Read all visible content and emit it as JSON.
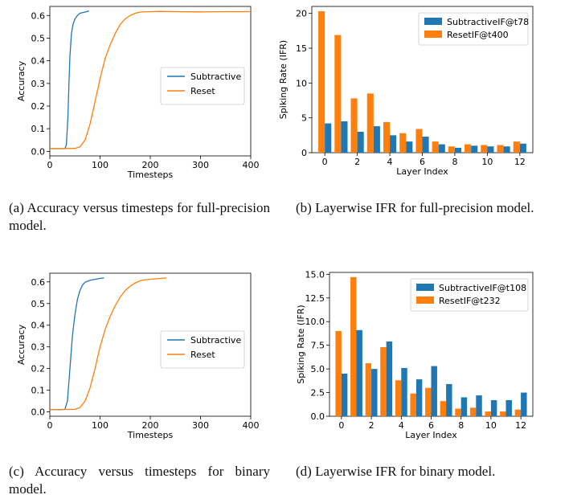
{
  "chart_data": [
    {
      "panel": "a",
      "type": "line",
      "xlabel": "Timesteps",
      "ylabel": "Accuracy",
      "xlim": [
        0,
        400
      ],
      "ylim": [
        -0.02,
        0.64
      ],
      "xticks": [
        0,
        100,
        200,
        300,
        400
      ],
      "yticks": [
        0.0,
        0.1,
        0.2,
        0.3,
        0.4,
        0.5,
        0.6
      ],
      "ytick_labels": [
        "0.0",
        "0.1",
        "0.2",
        "0.3",
        "0.4",
        "0.5",
        "0.6"
      ],
      "legend_position": "center-right",
      "series": [
        {
          "name": "Subtractive",
          "color": "#1f77b4",
          "x": [
            0,
            20,
            30,
            33,
            36,
            38,
            40,
            43,
            46,
            50,
            55,
            60,
            70,
            78
          ],
          "y": [
            0.012,
            0.012,
            0.012,
            0.03,
            0.15,
            0.3,
            0.42,
            0.52,
            0.56,
            0.585,
            0.6,
            0.61,
            0.615,
            0.62
          ]
        },
        {
          "name": "Reset",
          "color": "#ff7f0e",
          "x": [
            0,
            50,
            60,
            70,
            80,
            90,
            100,
            110,
            120,
            130,
            140,
            150,
            160,
            170,
            180,
            200,
            220,
            250,
            300,
            350,
            400
          ],
          "y": [
            0.012,
            0.013,
            0.02,
            0.05,
            0.12,
            0.22,
            0.32,
            0.41,
            0.47,
            0.52,
            0.56,
            0.585,
            0.6,
            0.61,
            0.615,
            0.617,
            0.618,
            0.617,
            0.616,
            0.617,
            0.617
          ]
        }
      ]
    },
    {
      "panel": "b",
      "type": "bar",
      "xlabel": "Layer Index",
      "ylabel": "Spiking Rate (IFR)",
      "xlim": [
        -0.8,
        12.8
      ],
      "ylim": [
        0,
        21
      ],
      "xticks": [
        0,
        2,
        4,
        6,
        8,
        10,
        12
      ],
      "yticks": [
        0,
        5,
        10,
        15,
        20
      ],
      "ytick_labels": [
        "0",
        "5",
        "10",
        "15",
        "20"
      ],
      "legend_position": "top-right",
      "categories": [
        0,
        1,
        2,
        3,
        4,
        5,
        6,
        7,
        8,
        9,
        10,
        11,
        12
      ],
      "series": [
        {
          "name": "SubtractiveIF@t78",
          "color": "#1f77b4",
          "values": [
            4.2,
            4.5,
            3.0,
            3.8,
            2.5,
            1.6,
            2.3,
            1.2,
            0.7,
            1.0,
            0.9,
            0.9,
            1.3
          ]
        },
        {
          "name": "ResetIF@t400",
          "color": "#ff7f0e",
          "values": [
            20.3,
            16.9,
            7.8,
            8.5,
            4.4,
            2.8,
            3.4,
            1.6,
            0.9,
            1.2,
            1.1,
            1.1,
            1.6
          ]
        }
      ]
    },
    {
      "panel": "c",
      "type": "line",
      "xlabel": "Timesteps",
      "ylabel": "Accuracy",
      "xlim": [
        0,
        400
      ],
      "ylim": [
        -0.02,
        0.64
      ],
      "xticks": [
        0,
        100,
        200,
        300,
        400
      ],
      "yticks": [
        0.0,
        0.1,
        0.2,
        0.3,
        0.4,
        0.5,
        0.6
      ],
      "ytick_labels": [
        "0.0",
        "0.1",
        "0.2",
        "0.3",
        "0.4",
        "0.5",
        "0.6"
      ],
      "legend_position": "center-right",
      "series": [
        {
          "name": "Subtractive",
          "color": "#1f77b4",
          "x": [
            0,
            20,
            30,
            35,
            40,
            45,
            50,
            55,
            60,
            65,
            70,
            80,
            90,
            100,
            108
          ],
          "y": [
            0.01,
            0.01,
            0.012,
            0.05,
            0.2,
            0.35,
            0.45,
            0.52,
            0.56,
            0.585,
            0.598,
            0.607,
            0.612,
            0.616,
            0.618
          ]
        },
        {
          "name": "Reset",
          "color": "#ff7f0e",
          "x": [
            0,
            50,
            60,
            70,
            80,
            90,
            100,
            110,
            120,
            130,
            140,
            150,
            160,
            170,
            180,
            190,
            200,
            210,
            220,
            232
          ],
          "y": [
            0.01,
            0.012,
            0.02,
            0.05,
            0.11,
            0.2,
            0.3,
            0.38,
            0.44,
            0.49,
            0.53,
            0.56,
            0.58,
            0.595,
            0.605,
            0.61,
            0.612,
            0.614,
            0.616,
            0.618
          ]
        }
      ]
    },
    {
      "panel": "d",
      "type": "bar",
      "xlabel": "Layer Index",
      "ylabel": "Spiking Rate (IFR)",
      "xlim": [
        -0.8,
        12.8
      ],
      "ylim": [
        0,
        15.2
      ],
      "xticks": [
        0,
        2,
        4,
        6,
        8,
        10,
        12
      ],
      "yticks": [
        0.0,
        2.5,
        5.0,
        7.5,
        10.0,
        12.5,
        15.0
      ],
      "ytick_labels": [
        "0.0",
        "2.5",
        "5.0",
        "7.5",
        "10.0",
        "12.5",
        "15.0"
      ],
      "legend_position": "top-right",
      "categories": [
        0,
        1,
        2,
        3,
        4,
        5,
        6,
        7,
        8,
        9,
        10,
        11,
        12
      ],
      "series": [
        {
          "name": "SubtractiveIF@t108",
          "color": "#1f77b4",
          "values": [
            4.5,
            9.1,
            5.0,
            7.9,
            5.1,
            3.9,
            5.3,
            3.4,
            2.0,
            2.2,
            1.7,
            1.7,
            2.5
          ]
        },
        {
          "name": "ResetIF@t232",
          "color": "#ff7f0e",
          "values": [
            9.0,
            14.7,
            5.6,
            7.3,
            3.8,
            2.4,
            3.0,
            1.6,
            0.8,
            0.9,
            0.5,
            0.5,
            0.7
          ]
        }
      ]
    }
  ],
  "captions": {
    "a": "(a) Accuracy versus timesteps for full-precision model.",
    "b": "(b) Layerwise IFR for full-precision model.",
    "c": "(c) Accuracy versus timesteps for binary model.",
    "d": "(d) Layerwise IFR for binary model."
  }
}
